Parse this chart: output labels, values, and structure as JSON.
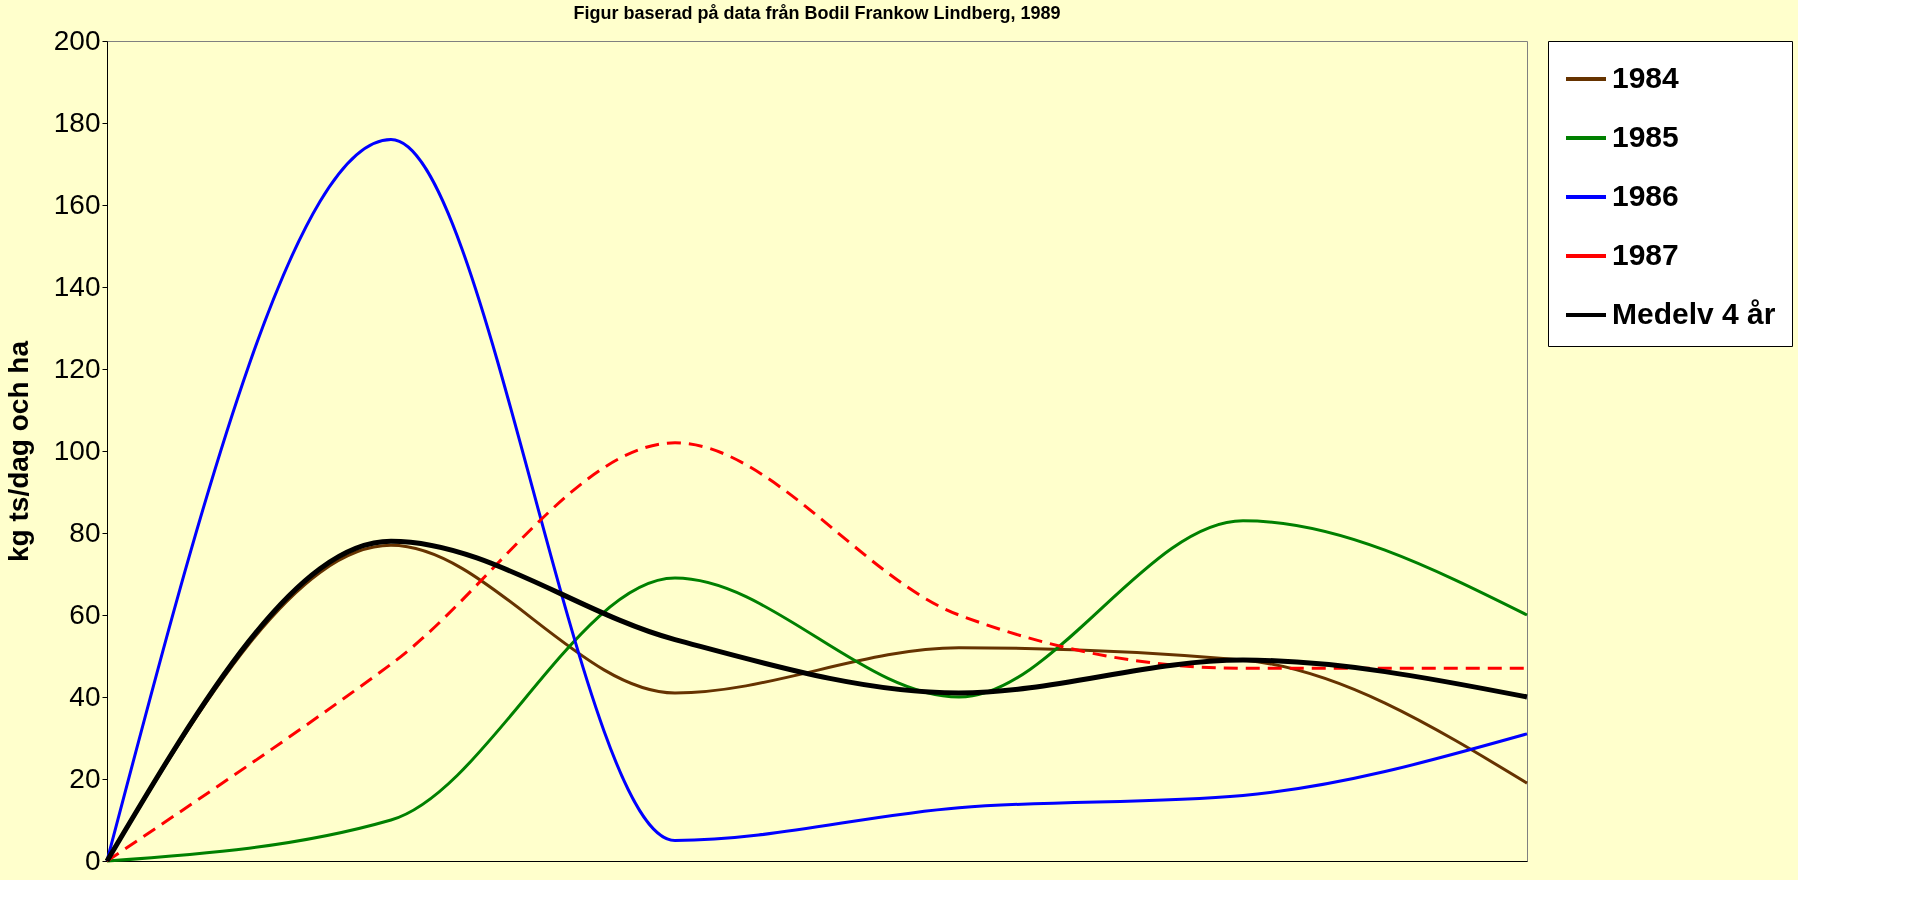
{
  "chart_data": {
    "type": "line",
    "title": "Figur baserad på data från Bodil Frankow Lindberg, 1989",
    "ylabel": "kg ts/dag och ha",
    "categories": [
      null,
      null,
      null,
      null,
      null,
      null
    ],
    "series": [
      {
        "name": "1984",
        "color": "#663300",
        "values": [
          0,
          77,
          41,
          52,
          49,
          19
        ]
      },
      {
        "name": "1985",
        "color": "#008000",
        "values": [
          0,
          10,
          69,
          40,
          83,
          60
        ]
      },
      {
        "name": "1986",
        "color": "#0000ff",
        "values": [
          0,
          176,
          5,
          13,
          16,
          31
        ]
      },
      {
        "name": "1987",
        "color": "#ff0000",
        "values": [
          0,
          48,
          102,
          60,
          47,
          47
        ],
        "line_style": "dashed"
      },
      {
        "name": "Medelv 4 år",
        "color": "#000000",
        "values": [
          0,
          78,
          54,
          41,
          49,
          40
        ]
      }
    ],
    "ylim": [
      0,
      200
    ],
    "yticks": [
      0,
      20,
      40,
      60,
      80,
      100,
      120,
      140,
      160,
      180,
      200
    ],
    "grid": false,
    "legend": "right",
    "tick_labels": "y",
    "marker": "none"
  }
}
